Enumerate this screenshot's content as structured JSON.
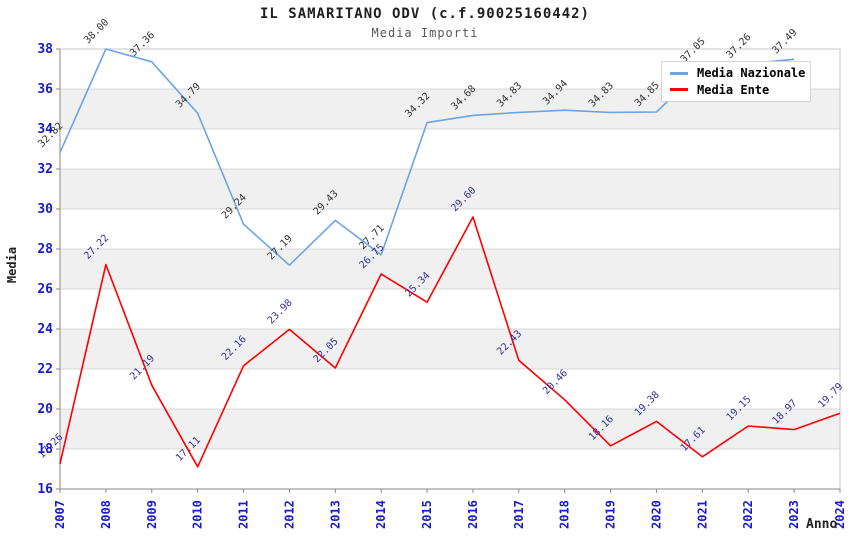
{
  "title": "IL SAMARITANO ODV (c.f.90025160442)",
  "subtitle": "Media Importi",
  "axes": {
    "y_label": "Media",
    "x_label": "Anno",
    "y_ticks": [
      16,
      18,
      20,
      22,
      24,
      26,
      28,
      30,
      32,
      34,
      36,
      38
    ],
    "x_ticks": [
      2007,
      2008,
      2009,
      2010,
      2011,
      2012,
      2013,
      2014,
      2015,
      2016,
      2017,
      2018,
      2019,
      2020,
      2021,
      2022,
      2023,
      2024
    ]
  },
  "legend": {
    "items": [
      {
        "label": "Media Nazionale",
        "color": "#6da4e3"
      },
      {
        "label": "Media Ente",
        "color": "#ff0000"
      }
    ],
    "position": "top-right"
  },
  "colors": {
    "tick_text": "#1a1ace",
    "band_fill": "#f0f0f0",
    "gridline": "#d9d9d9",
    "frame": "#c8c8c8",
    "axis_line": "#8a8a8a",
    "national_series": "#6da4e3",
    "ente_series": "#ff0000",
    "national_label_text": "#333333",
    "ente_label_text": "#333399"
  },
  "chart_data": {
    "type": "line",
    "title": "IL SAMARITANO ODV (c.f.90025160442)",
    "subtitle": "Media Importi",
    "xlabel": "Anno",
    "ylabel": "Media",
    "ylim": [
      16,
      38
    ],
    "grid": "horizontal alternating bands",
    "legend_position": "top-right inside plot",
    "x": [
      2007,
      2008,
      2009,
      2010,
      2011,
      2012,
      2013,
      2014,
      2015,
      2016,
      2017,
      2018,
      2019,
      2020,
      2021,
      2022,
      2023,
      2024
    ],
    "series": [
      {
        "name": "Media Nazionale",
        "color": "#6da4e3",
        "label_color": "#333333",
        "values": [
          32.82,
          38.0,
          37.36,
          34.79,
          29.24,
          27.19,
          29.43,
          27.71,
          34.32,
          34.68,
          34.83,
          34.94,
          34.83,
          34.85,
          37.05,
          37.26,
          37.49,
          null
        ]
      },
      {
        "name": "Media Ente",
        "color": "#ff0000",
        "label_color": "#333399",
        "values": [
          17.26,
          27.22,
          21.19,
          17.11,
          22.16,
          23.98,
          22.05,
          26.75,
          25.34,
          29.6,
          22.43,
          20.46,
          18.16,
          19.38,
          17.61,
          19.15,
          18.97,
          19.79
        ]
      }
    ]
  }
}
